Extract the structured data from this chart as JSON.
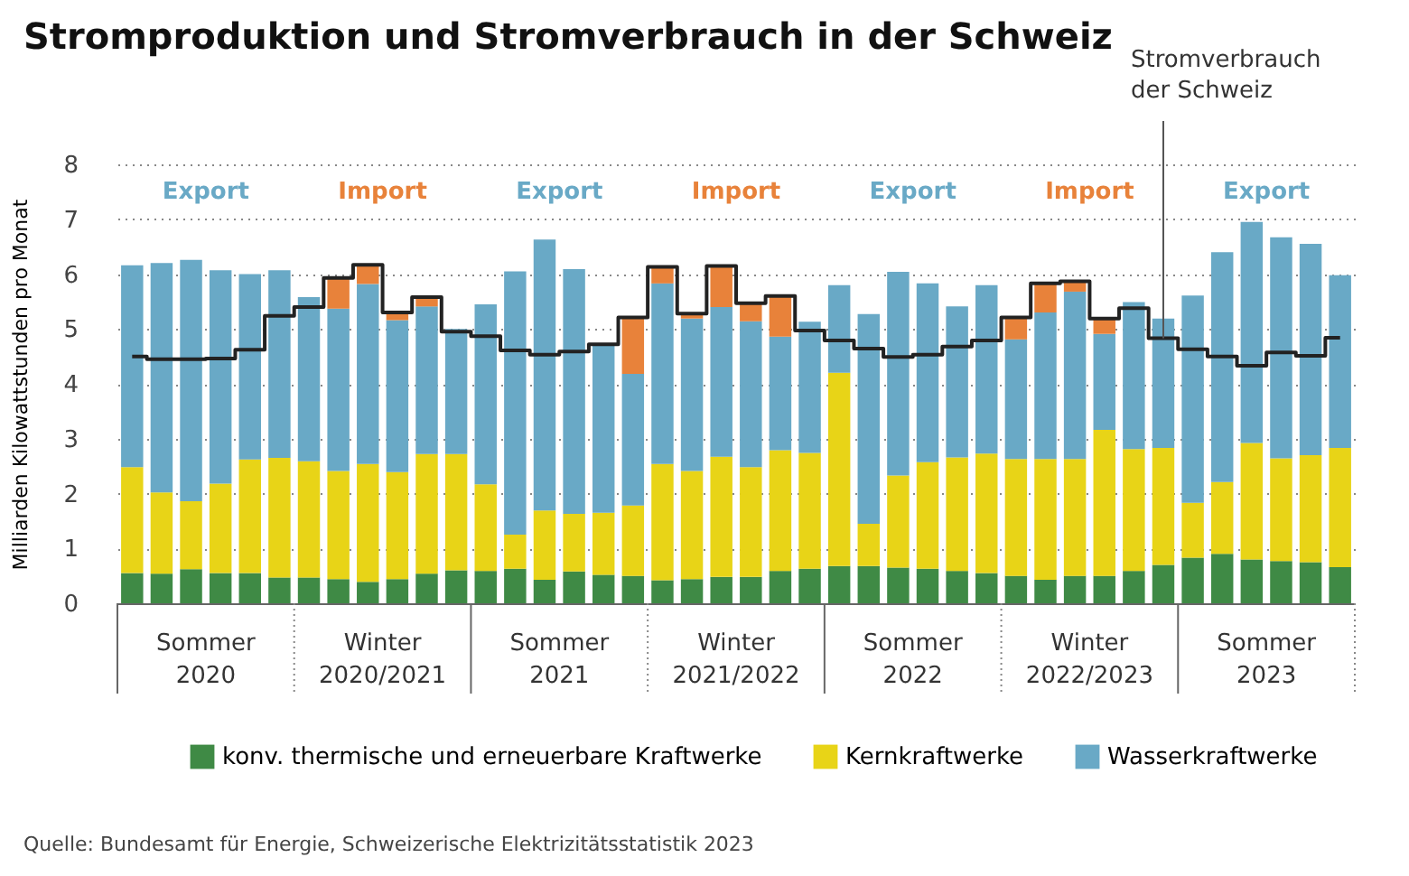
{
  "chart_data": {
    "type": "bar",
    "title": "Stromproduktion und Stromverbrauch in der Schweiz",
    "ylabel": "Milliarden Kilowattstunden pro Monat",
    "categories": [
      null,
      null,
      null,
      null,
      null,
      null,
      null,
      null,
      null,
      null,
      null,
      null,
      null,
      null,
      null,
      null,
      null,
      null,
      null,
      null,
      null,
      null,
      null,
      null,
      null,
      null,
      null,
      null,
      null,
      null,
      null,
      null,
      null,
      null,
      null,
      null,
      null,
      null,
      null,
      null,
      null,
      null
    ],
    "stacked": true,
    "series": [
      {
        "name": "konv. thermische und erneuerbare Kraftwerke",
        "color": "#3f8a45",
        "values": [
          0.55,
          0.54,
          0.62,
          0.55,
          0.55,
          0.47,
          0.47,
          0.44,
          0.39,
          0.44,
          0.54,
          0.6,
          0.59,
          0.63,
          0.43,
          0.58,
          0.52,
          0.5,
          0.42,
          0.44,
          0.48,
          0.48,
          0.59,
          0.63,
          0.68,
          0.68,
          0.65,
          0.63,
          0.59,
          0.55,
          0.5,
          0.43,
          0.5,
          0.5,
          0.59,
          0.7,
          0.83,
          0.9,
          0.8,
          0.77,
          0.75,
          0.66
        ]
      },
      {
        "name": "Kernkraftwerke",
        "color": "#e8d417",
        "values": [
          1.93,
          1.48,
          1.24,
          1.63,
          2.07,
          2.18,
          2.12,
          1.97,
          2.15,
          1.95,
          2.18,
          2.12,
          1.58,
          0.62,
          1.26,
          1.05,
          1.13,
          1.28,
          2.12,
          1.97,
          2.19,
          2.0,
          2.2,
          2.11,
          3.52,
          0.77,
          1.68,
          1.94,
          2.07,
          2.18,
          2.13,
          2.2,
          2.13,
          2.66,
          2.22,
          2.13,
          1.0,
          1.31,
          2.12,
          1.87,
          1.95,
          2.17
        ]
      },
      {
        "name": "Wasserkraftwerke",
        "color": "#69a9c6",
        "values": [
          3.68,
          4.18,
          4.4,
          3.89,
          3.38,
          3.42,
          2.99,
          2.96,
          3.28,
          2.77,
          2.69,
          2.28,
          3.28,
          4.8,
          4.94,
          4.46,
          3.05,
          2.4,
          3.29,
          2.78,
          2.73,
          2.66,
          2.07,
          2.39,
          1.6,
          3.82,
          3.71,
          3.26,
          2.75,
          3.07,
          2.18,
          2.67,
          3.05,
          1.75,
          2.68,
          2.36,
          3.78,
          4.19,
          4.03,
          4.03,
          3.85,
          3.15
        ]
      },
      {
        "color": "#e8823a",
        "values": [
          null,
          null,
          null,
          null,
          null,
          null,
          null,
          0.56,
          0.35,
          0.14,
          0.17,
          null,
          null,
          null,
          null,
          null,
          null,
          1.03,
          0.3,
          0.09,
          0.75,
          0.33,
          0.74,
          null,
          null,
          null,
          null,
          null,
          null,
          null,
          0.4,
          0.53,
          0.19,
          0.28,
          null,
          null,
          null,
          null,
          null,
          null,
          null,
          null
        ]
      },
      {
        "name": "Stromverbrauch der Schweiz",
        "type": "step",
        "color": "#222222",
        "values": [
          4.5,
          4.45,
          4.45,
          4.46,
          4.62,
          5.24,
          5.4,
          5.93,
          6.17,
          5.3,
          5.58,
          4.95,
          4.87,
          4.61,
          4.53,
          4.59,
          4.72,
          5.21,
          6.13,
          5.28,
          6.15,
          5.47,
          5.6,
          4.97,
          4.79,
          4.64,
          4.49,
          4.53,
          4.68,
          4.79,
          5.21,
          5.83,
          5.87,
          5.19,
          5.38,
          4.83,
          4.63,
          4.5,
          4.33,
          4.57,
          4.51,
          4.84
        ]
      }
    ],
    "ylim": [
      0,
      8
    ],
    "yticks": [
      0,
      1,
      2,
      3,
      4,
      5,
      6,
      7,
      8
    ],
    "grid": "y",
    "legend": "bottom",
    "tick_labels": "y",
    "annotations": [
      "Sommer\n2020",
      "Winter\n2020/2021",
      "Sommer\n2021",
      "Winter\n2021/2022",
      "Sommer\n2022",
      "Winter\n2022/2023",
      "Sommer\n2023",
      "Export",
      "Import",
      "Export",
      "Import",
      "Export",
      "Import",
      "Export",
      "Quelle: Bundesamt für Energie, Schweizerische Elektrizitätsstatistik 2023"
    ]
  }
}
